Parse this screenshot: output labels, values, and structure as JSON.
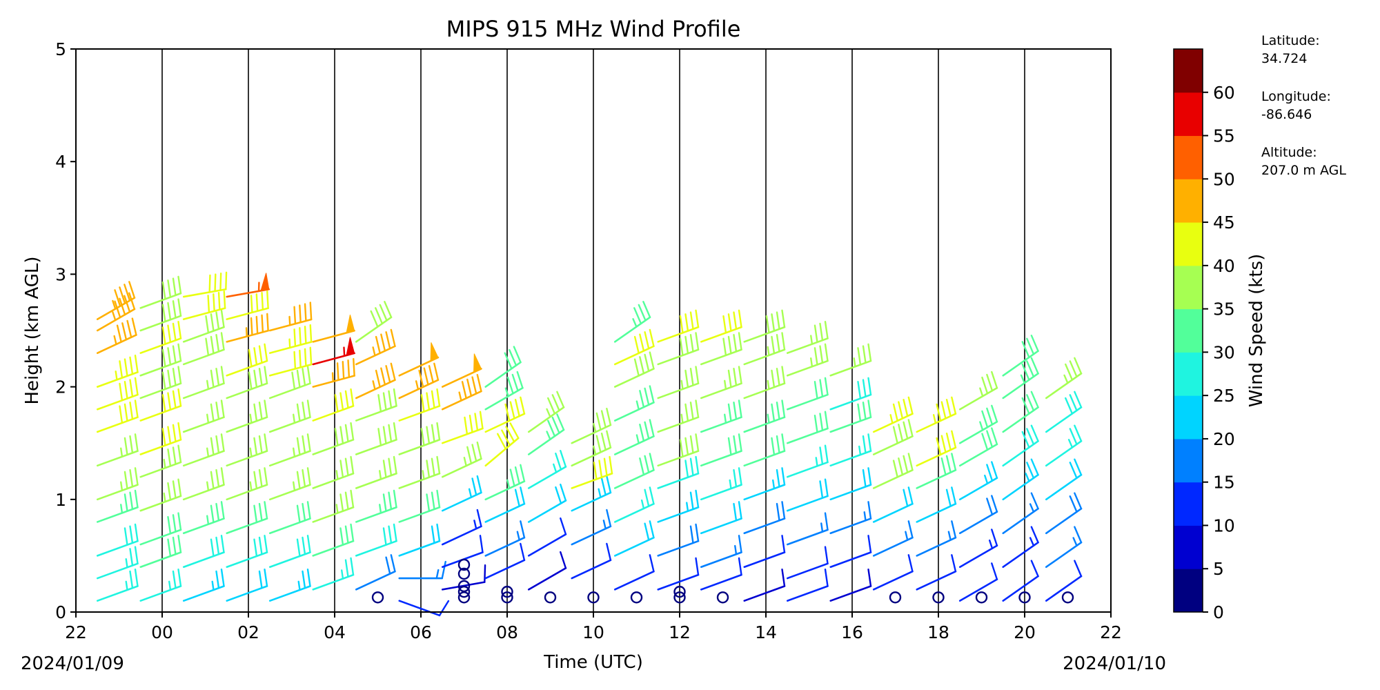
{
  "chart_data": {
    "type": "wind_barb_profile",
    "title": "MIPS 915 MHz Wind Profile",
    "xlabel": "Time (UTC)",
    "ylabel": "Height (km AGL)",
    "x_start_date": "2024/01/09",
    "x_end_date": "2024/01/10",
    "x_ticks": [
      "22",
      "00",
      "02",
      "04",
      "06",
      "08",
      "10",
      "12",
      "14",
      "16",
      "18",
      "20",
      "22"
    ],
    "xlim_hours_utc": [
      22,
      46
    ],
    "y_ticks": [
      "0",
      "1",
      "2",
      "3",
      "4",
      "5"
    ],
    "ylim": [
      0,
      5
    ],
    "vertical_gridlines": true,
    "colorbar": {
      "label": "Wind Speed (kts)",
      "ticks": [
        "0",
        "5",
        "10",
        "15",
        "20",
        "25",
        "30",
        "35",
        "40",
        "45",
        "50",
        "55",
        "60"
      ],
      "bins": [
        0,
        5,
        10,
        15,
        20,
        25,
        30,
        35,
        40,
        45,
        50,
        55,
        60
      ],
      "colors": [
        "#000080",
        "#0000d0",
        "#0028ff",
        "#0080ff",
        "#00d4ff",
        "#1ff4e0",
        "#52ff9a",
        "#a6ff52",
        "#e8ff10",
        "#ffb000",
        "#ff6000",
        "#e80000",
        "#800000"
      ]
    },
    "profiles": [
      {
        "time": "22:30",
        "barbs": [
          [
            0.1,
            25,
            250
          ],
          [
            0.3,
            27,
            250
          ],
          [
            0.5,
            29,
            250
          ],
          [
            0.8,
            33,
            250
          ],
          [
            1.0,
            35,
            250
          ],
          [
            1.3,
            37,
            250
          ],
          [
            1.6,
            40,
            250
          ],
          [
            1.8,
            42,
            250
          ],
          [
            2.0,
            44,
            250
          ],
          [
            2.3,
            45,
            245
          ],
          [
            2.5,
            47,
            240
          ],
          [
            2.6,
            46,
            240
          ]
        ]
      },
      {
        "time": "23:30",
        "barbs": [
          [
            0.1,
            26,
            250
          ],
          [
            0.4,
            30,
            250
          ],
          [
            0.6,
            32,
            250
          ],
          [
            0.9,
            35,
            250
          ],
          [
            1.2,
            37,
            250
          ],
          [
            1.4,
            41,
            250
          ],
          [
            1.7,
            42,
            250
          ],
          [
            1.9,
            38,
            250
          ],
          [
            2.1,
            39,
            250
          ],
          [
            2.3,
            40,
            250
          ],
          [
            2.5,
            39,
            250
          ],
          [
            2.7,
            38,
            250
          ]
        ]
      },
      {
        "time": "00:30",
        "barbs": [
          [
            0.1,
            24,
            250
          ],
          [
            0.4,
            28,
            250
          ],
          [
            0.7,
            33,
            250
          ],
          [
            1.0,
            36,
            250
          ],
          [
            1.3,
            37,
            250
          ],
          [
            1.6,
            36,
            250
          ],
          [
            1.9,
            36,
            250
          ],
          [
            2.2,
            38,
            250
          ],
          [
            2.4,
            39,
            250
          ],
          [
            2.6,
            40,
            255
          ],
          [
            2.8,
            42,
            260
          ]
        ]
      },
      {
        "time": "01:30",
        "barbs": [
          [
            0.1,
            22,
            250
          ],
          [
            0.4,
            28,
            250
          ],
          [
            0.7,
            31,
            250
          ],
          [
            1.0,
            35,
            250
          ],
          [
            1.3,
            36,
            250
          ],
          [
            1.6,
            37,
            250
          ],
          [
            1.9,
            39,
            250
          ],
          [
            2.1,
            40,
            250
          ],
          [
            2.4,
            47,
            255
          ],
          [
            2.6,
            40,
            255
          ],
          [
            2.8,
            53,
            260
          ]
        ]
      },
      {
        "time": "02:30",
        "barbs": [
          [
            0.1,
            24,
            250
          ],
          [
            0.4,
            29,
            250
          ],
          [
            0.7,
            32,
            250
          ],
          [
            1.0,
            35,
            250
          ],
          [
            1.3,
            37,
            250
          ],
          [
            1.6,
            37,
            250
          ],
          [
            1.9,
            38,
            250
          ],
          [
            2.1,
            41,
            255
          ],
          [
            2.3,
            44,
            255
          ],
          [
            2.5,
            47,
            255
          ]
        ]
      },
      {
        "time": "03:30",
        "barbs": [
          [
            0.2,
            26,
            250
          ],
          [
            0.5,
            30,
            250
          ],
          [
            0.8,
            35,
            250
          ],
          [
            1.1,
            37,
            250
          ],
          [
            1.4,
            39,
            250
          ],
          [
            1.7,
            41,
            250
          ],
          [
            2.0,
            45,
            255
          ],
          [
            2.2,
            57,
            255
          ],
          [
            2.4,
            49,
            255
          ]
        ]
      },
      {
        "time": "04:30",
        "barbs": [
          [
            0.2,
            18,
            245
          ],
          [
            0.5,
            28,
            250
          ],
          [
            0.8,
            33,
            250
          ],
          [
            1.1,
            36,
            250
          ],
          [
            1.4,
            38,
            250
          ],
          [
            1.7,
            39,
            250
          ],
          [
            1.9,
            47,
            245
          ],
          [
            2.2,
            47,
            245
          ],
          [
            2.4,
            39,
            235
          ]
        ]
      },
      {
        "time": "05:30",
        "barbs": [
          [
            0.1,
            12,
            290
          ],
          [
            0.3,
            15,
            270
          ],
          [
            0.5,
            22,
            250
          ],
          [
            0.8,
            30,
            250
          ],
          [
            1.1,
            35,
            250
          ],
          [
            1.4,
            38,
            250
          ],
          [
            1.7,
            41,
            250
          ],
          [
            1.9,
            47,
            245
          ],
          [
            2.1,
            49,
            245
          ]
        ]
      },
      {
        "time": "06:30",
        "barbs": [
          [
            0.2,
            8,
            260
          ],
          [
            0.4,
            10,
            250
          ],
          [
            0.6,
            13,
            245
          ],
          [
            0.9,
            24,
            245
          ],
          [
            1.2,
            36,
            245
          ],
          [
            1.5,
            41,
            250
          ],
          [
            1.8,
            46,
            245
          ],
          [
            2.0,
            48,
            245
          ]
        ]
      },
      {
        "time": "07:30",
        "barbs": [
          [
            0.3,
            12,
            245
          ],
          [
            0.5,
            15,
            245
          ],
          [
            0.8,
            22,
            245
          ],
          [
            1.0,
            34,
            245
          ],
          [
            1.3,
            42,
            230
          ],
          [
            1.6,
            40,
            245
          ],
          [
            1.8,
            34,
            240
          ],
          [
            2.0,
            30,
            235
          ]
        ]
      },
      {
        "time": "08:30",
        "barbs": [
          [
            0.2,
            8,
            240
          ],
          [
            0.5,
            12,
            240
          ],
          [
            0.8,
            20,
            240
          ],
          [
            1.1,
            27,
            240
          ],
          [
            1.4,
            33,
            235
          ],
          [
            1.6,
            36,
            235
          ]
        ]
      },
      {
        "time": "09:30",
        "barbs": [
          [
            0.3,
            10,
            245
          ],
          [
            0.6,
            15,
            245
          ],
          [
            0.9,
            24,
            245
          ],
          [
            1.1,
            42,
            250
          ],
          [
            1.3,
            35,
            245
          ],
          [
            1.5,
            36,
            245
          ]
        ]
      },
      {
        "time": "10:30",
        "barbs": [
          [
            0.2,
            12,
            245
          ],
          [
            0.5,
            20,
            245
          ],
          [
            0.8,
            27,
            245
          ],
          [
            1.1,
            31,
            245
          ],
          [
            1.4,
            33,
            245
          ],
          [
            1.7,
            33,
            245
          ],
          [
            2.0,
            38,
            245
          ],
          [
            2.2,
            40,
            245
          ],
          [
            2.4,
            34,
            235
          ]
        ]
      },
      {
        "time": "11:30",
        "barbs": [
          [
            0.2,
            12,
            250
          ],
          [
            0.5,
            18,
            250
          ],
          [
            0.8,
            24,
            250
          ],
          [
            1.1,
            29,
            250
          ],
          [
            1.3,
            39,
            250
          ],
          [
            1.6,
            35,
            250
          ],
          [
            1.9,
            35,
            250
          ],
          [
            2.2,
            38,
            250
          ],
          [
            2.4,
            42,
            250
          ]
        ]
      },
      {
        "time": "12:30",
        "barbs": [
          [
            0.2,
            10,
            250
          ],
          [
            0.4,
            16,
            250
          ],
          [
            0.7,
            22,
            250
          ],
          [
            1.0,
            27,
            250
          ],
          [
            1.3,
            32,
            250
          ],
          [
            1.6,
            34,
            250
          ],
          [
            1.9,
            35,
            250
          ],
          [
            2.2,
            38,
            250
          ],
          [
            2.4,
            41,
            250
          ]
        ]
      },
      {
        "time": "13:30",
        "barbs": [
          [
            0.1,
            8,
            250
          ],
          [
            0.4,
            12,
            250
          ],
          [
            0.7,
            19,
            250
          ],
          [
            1.0,
            24,
            250
          ],
          [
            1.3,
            30,
            250
          ],
          [
            1.6,
            33,
            250
          ],
          [
            1.9,
            35,
            250
          ],
          [
            2.2,
            36,
            250
          ],
          [
            2.4,
            38,
            250
          ]
        ]
      },
      {
        "time": "14:30",
        "barbs": [
          [
            0.1,
            10,
            250
          ],
          [
            0.3,
            12,
            250
          ],
          [
            0.6,
            15,
            250
          ],
          [
            0.9,
            21,
            250
          ],
          [
            1.2,
            27,
            250
          ],
          [
            1.5,
            31,
            250
          ],
          [
            1.8,
            32,
            250
          ],
          [
            2.1,
            35,
            250
          ],
          [
            2.3,
            37,
            250
          ]
        ]
      },
      {
        "time": "15:30",
        "barbs": [
          [
            0.1,
            8,
            250
          ],
          [
            0.4,
            12,
            250
          ],
          [
            0.7,
            15,
            250
          ],
          [
            1.0,
            20,
            250
          ],
          [
            1.3,
            27,
            250
          ],
          [
            1.6,
            30,
            250
          ],
          [
            1.8,
            28,
            250
          ],
          [
            2.1,
            35,
            250
          ]
        ]
      },
      {
        "time": "16:30",
        "barbs": [
          [
            0.2,
            12,
            245
          ],
          [
            0.5,
            15,
            245
          ],
          [
            0.8,
            20,
            245
          ],
          [
            1.1,
            38,
            245
          ],
          [
            1.4,
            39,
            245
          ],
          [
            1.6,
            44,
            245
          ]
        ]
      },
      {
        "time": "17:30",
        "barbs": [
          [
            0.2,
            12,
            245
          ],
          [
            0.5,
            15,
            245
          ],
          [
            0.8,
            22,
            245
          ],
          [
            1.1,
            30,
            245
          ],
          [
            1.3,
            40,
            245
          ],
          [
            1.6,
            43,
            245
          ]
        ]
      },
      {
        "time": "18:30",
        "barbs": [
          [
            0.1,
            10,
            240
          ],
          [
            0.4,
            14,
            240
          ],
          [
            0.7,
            18,
            240
          ],
          [
            1.0,
            24,
            240
          ],
          [
            1.3,
            30,
            240
          ],
          [
            1.5,
            33,
            240
          ],
          [
            1.8,
            37,
            240
          ]
        ]
      },
      {
        "time": "19:30",
        "barbs": [
          [
            0.1,
            10,
            235
          ],
          [
            0.4,
            14,
            235
          ],
          [
            0.7,
            17,
            235
          ],
          [
            1.0,
            24,
            235
          ],
          [
            1.3,
            28,
            235
          ],
          [
            1.6,
            31,
            235
          ],
          [
            1.9,
            33,
            235
          ],
          [
            2.1,
            31,
            235
          ]
        ]
      },
      {
        "time": "20:30",
        "barbs": [
          [
            0.1,
            12,
            235
          ],
          [
            0.4,
            15,
            235
          ],
          [
            0.7,
            18,
            235
          ],
          [
            1.0,
            22,
            235
          ],
          [
            1.3,
            26,
            235
          ],
          [
            1.6,
            29,
            235
          ],
          [
            1.9,
            35,
            235
          ]
        ]
      }
    ],
    "calm_markers": [
      {
        "time": "05:00",
        "height_km": 0.13
      },
      {
        "time": "07:00",
        "height_km": 0.13
      },
      {
        "time": "07:00",
        "height_km": 0.18
      },
      {
        "time": "07:00",
        "height_km": 0.23
      },
      {
        "time": "07:00",
        "height_km": 0.34
      },
      {
        "time": "07:00",
        "height_km": 0.42
      },
      {
        "time": "08:00",
        "height_km": 0.13
      },
      {
        "time": "08:00",
        "height_km": 0.18
      },
      {
        "time": "09:00",
        "height_km": 0.13
      },
      {
        "time": "10:00",
        "height_km": 0.13
      },
      {
        "time": "11:00",
        "height_km": 0.13
      },
      {
        "time": "12:00",
        "height_km": 0.13
      },
      {
        "time": "12:00",
        "height_km": 0.18
      },
      {
        "time": "13:00",
        "height_km": 0.13
      },
      {
        "time": "17:00",
        "height_km": 0.13
      },
      {
        "time": "18:00",
        "height_km": 0.13
      },
      {
        "time": "19:00",
        "height_km": 0.13
      },
      {
        "time": "20:00",
        "height_km": 0.13
      },
      {
        "time": "21:00",
        "height_km": 0.13
      }
    ]
  },
  "station_info": {
    "latitude_label": "Latitude:",
    "latitude_value": "34.724",
    "longitude_label": "Longitude:",
    "longitude_value": "-86.646",
    "altitude_label": "Altitude:",
    "altitude_value": "207.0 m AGL"
  }
}
